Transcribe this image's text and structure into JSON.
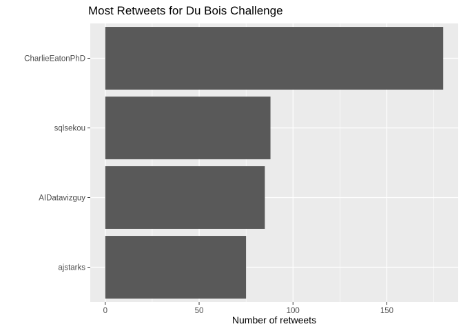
{
  "chart_data": {
    "type": "bar",
    "orientation": "horizontal",
    "title": "Most Retweets for Du Bois Challenge",
    "xlabel": "Number of retweets",
    "ylabel": "",
    "categories": [
      "CharlieEatonPhD",
      "sqlsekou",
      "AIDatavizguy",
      "ajstarks"
    ],
    "values": [
      180,
      88,
      85,
      75
    ],
    "xlim": [
      -8,
      188
    ],
    "xticks": [
      0,
      50,
      100,
      150
    ],
    "grid": true,
    "bar_color": "#595959",
    "panel_color": "#ebebeb",
    "grid_color": "#ffffff"
  }
}
